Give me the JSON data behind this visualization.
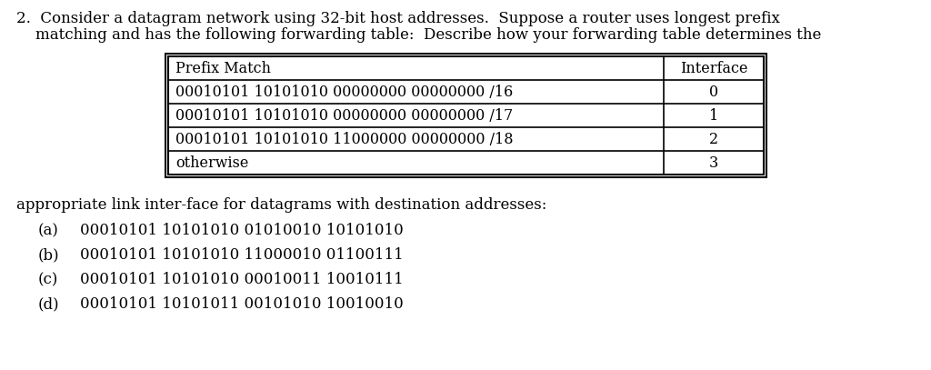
{
  "background_color": "#ffffff",
  "header_line1": "2.  Consider a datagram network using 32-bit host addresses.  Suppose a router uses longest prefix",
  "header_line2": "    matching and has the following forwarding table:  Describe how your forwarding table determines the",
  "table_col1_header": "Prefix Match",
  "table_col2_header": "Interface",
  "table_rows": [
    [
      "00010101 10101010 00000000 00000000 /16",
      "0"
    ],
    [
      "00010101 10101010 00000000 00000000 /17",
      "1"
    ],
    [
      "00010101 10101010 11000000 00000000 /18",
      "2"
    ],
    [
      "otherwise",
      "3"
    ]
  ],
  "footer_text": "appropriate link inter-face for datagrams with destination addresses:",
  "list_labels": [
    "(a)",
    "(b)",
    "(c)",
    "(d)"
  ],
  "list_addresses": [
    "00010101 10101010 01010010 10101010",
    "00010101 10101010 11000010 01100111",
    "00010101 10101010 00010011 10010111",
    "00010101 10101011 00101010 10010010"
  ],
  "font_family": "serif",
  "main_fontsize": 12.0,
  "table_fontsize": 11.5,
  "list_fontsize": 12.0
}
